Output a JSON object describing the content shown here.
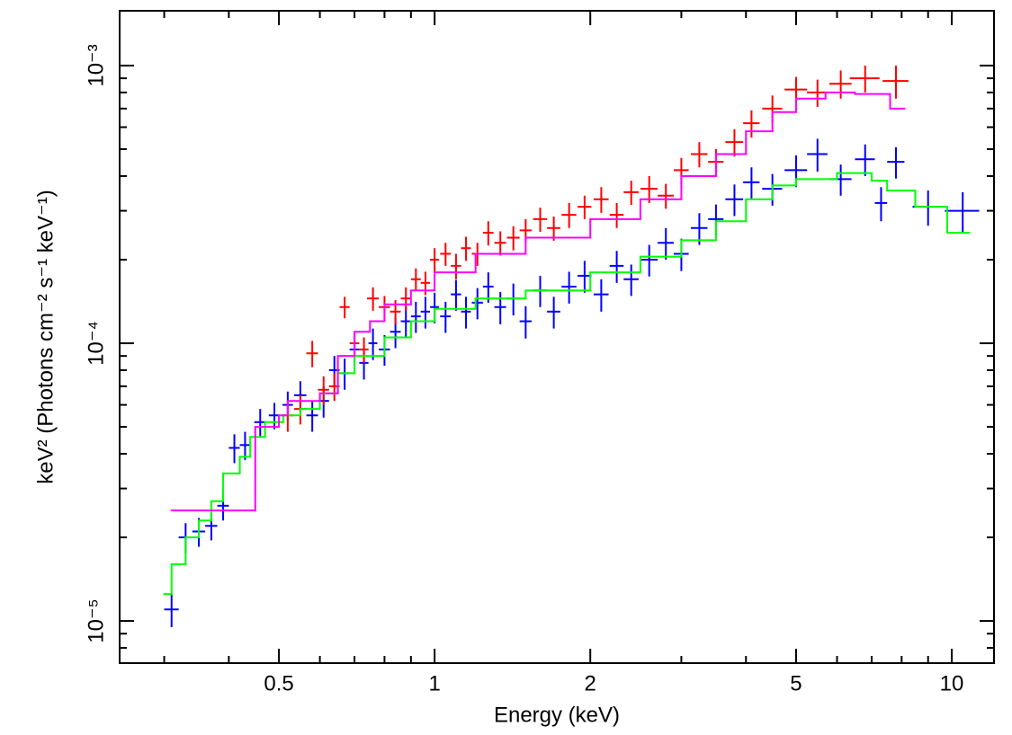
{
  "chart_data": {
    "type": "scatter",
    "xlabel": "Energy (keV)",
    "ylabel": "keV² (Photons cm⁻² s⁻¹ keV⁻¹)",
    "xscale": "log",
    "yscale": "log",
    "xlim": [
      0.246,
      12.07
    ],
    "ylim": [
      7.05e-06,
      0.001575
    ],
    "xticks": [
      0.5,
      1,
      2,
      5,
      10
    ],
    "xminorticks": [
      0.3,
      0.4,
      0.6,
      0.7,
      0.8,
      0.9,
      3,
      4,
      6,
      7,
      8,
      9
    ],
    "yticks": [
      {
        "value": 1e-05,
        "label": "10⁻⁵"
      },
      {
        "value": 0.0001,
        "label": "10⁻⁴"
      },
      {
        "value": 0.001,
        "label": "10⁻³"
      }
    ],
    "yminorticks": [
      8e-06,
      9e-06,
      2e-05,
      3e-05,
      4e-05,
      5e-05,
      6e-05,
      7e-05,
      8e-05,
      9e-05,
      0.0002,
      0.0003,
      0.0004,
      0.0005,
      0.0006,
      0.0007,
      0.0008,
      0.0009
    ],
    "series": [
      {
        "kind": "errorbar",
        "color": "#0000ff",
        "x": [
          0.31,
          0.33,
          0.35,
          0.37,
          0.39,
          0.41,
          0.43,
          0.46,
          0.49,
          0.52,
          0.55,
          0.58,
          0.61,
          0.64,
          0.67,
          0.7,
          0.73,
          0.76,
          0.8,
          0.84,
          0.88,
          0.92,
          0.96,
          1.0,
          1.05,
          1.1,
          1.15,
          1.21,
          1.27,
          1.34,
          1.42,
          1.5,
          1.6,
          1.7,
          1.82,
          1.95,
          2.1,
          2.25,
          2.4,
          2.6,
          2.8,
          3.0,
          3.25,
          3.5,
          3.8,
          4.1,
          4.5,
          5.0,
          5.5,
          6.1,
          6.8,
          7.3,
          7.8,
          9.0,
          10.5
        ],
        "xerr": [
          0.01,
          0.01,
          0.01,
          0.01,
          0.01,
          0.01,
          0.01,
          0.012,
          0.012,
          0.012,
          0.015,
          0.015,
          0.015,
          0.015,
          0.015,
          0.015,
          0.015,
          0.015,
          0.02,
          0.02,
          0.02,
          0.02,
          0.02,
          0.02,
          0.025,
          0.025,
          0.025,
          0.03,
          0.03,
          0.035,
          0.04,
          0.04,
          0.05,
          0.05,
          0.06,
          0.06,
          0.07,
          0.07,
          0.08,
          0.1,
          0.1,
          0.1,
          0.12,
          0.12,
          0.15,
          0.15,
          0.2,
          0.25,
          0.25,
          0.3,
          0.3,
          0.2,
          0.3,
          0.6,
          0.8
        ],
        "values": [
          1.1e-05,
          2e-05,
          2.1e-05,
          2.2e-05,
          2.6e-05,
          4.2e-05,
          4.3e-05,
          5.2e-05,
          5.5e-05,
          6e-05,
          6.5e-05,
          5.5e-05,
          6.2e-05,
          8e-05,
          7.8e-05,
          9.5e-05,
          8.5e-05,
          0.0001,
          9.5e-05,
          0.00011,
          0.00012,
          0.000125,
          0.00013,
          0.000135,
          0.000125,
          0.00015,
          0.00013,
          0.00014,
          0.00016,
          0.000135,
          0.000145,
          0.00012,
          0.000155,
          0.00013,
          0.00016,
          0.000175,
          0.00015,
          0.00019,
          0.00017,
          0.0002,
          0.00023,
          0.00021,
          0.00026,
          0.00028,
          0.00033,
          0.00038,
          0.00036,
          0.00042,
          0.00048,
          0.00039,
          0.00046,
          0.00032,
          0.00045,
          0.00031,
          0.0003
        ],
        "yerr": [
          1.5e-06,
          2.5e-06,
          2.5e-06,
          2.5e-06,
          3e-06,
          5e-06,
          5e-06,
          6e-06,
          6e-06,
          7e-06,
          8e-06,
          7e-06,
          8e-06,
          1e-05,
          1e-05,
          1.2e-05,
          1.1e-05,
          1.3e-05,
          1.2e-05,
          1.4e-05,
          1.5e-05,
          1.6e-05,
          1.7e-05,
          1.7e-05,
          1.6e-05,
          1.9e-05,
          1.7e-05,
          1.8e-05,
          2e-05,
          1.8e-05,
          1.9e-05,
          1.6e-05,
          2e-05,
          1.7e-05,
          2.1e-05,
          2.3e-05,
          2e-05,
          2.5e-05,
          2.2e-05,
          2.6e-05,
          3e-05,
          2.8e-05,
          3.4e-05,
          3.6e-05,
          4.3e-05,
          5e-05,
          4.7e-05,
          5.5e-05,
          6.5e-05,
          5e-05,
          6e-05,
          4.5e-05,
          5.8e-05,
          4.5e-05,
          5e-05
        ]
      },
      {
        "kind": "errorbar",
        "color": "#ff0000",
        "x": [
          0.52,
          0.55,
          0.58,
          0.61,
          0.64,
          0.67,
          0.7,
          0.73,
          0.76,
          0.8,
          0.84,
          0.88,
          0.92,
          0.96,
          1.0,
          1.05,
          1.1,
          1.15,
          1.21,
          1.27,
          1.34,
          1.42,
          1.5,
          1.6,
          1.7,
          1.82,
          1.95,
          2.1,
          2.25,
          2.4,
          2.6,
          2.8,
          3.0,
          3.25,
          3.5,
          3.8,
          4.1,
          4.5,
          5.0,
          5.5,
          6.1,
          6.8,
          7.8
        ],
        "xerr": [
          0.015,
          0.015,
          0.015,
          0.015,
          0.015,
          0.015,
          0.015,
          0.015,
          0.02,
          0.02,
          0.02,
          0.02,
          0.02,
          0.02,
          0.02,
          0.025,
          0.025,
          0.025,
          0.03,
          0.03,
          0.035,
          0.04,
          0.04,
          0.05,
          0.05,
          0.06,
          0.06,
          0.07,
          0.07,
          0.08,
          0.1,
          0.1,
          0.1,
          0.12,
          0.12,
          0.15,
          0.15,
          0.2,
          0.25,
          0.25,
          0.3,
          0.45,
          0.45
        ],
        "values": [
          5.5e-05,
          5.8e-05,
          9.2e-05,
          6.8e-05,
          7e-05,
          0.000135,
          0.0001,
          9.5e-05,
          0.000145,
          0.000135,
          0.00013,
          0.000145,
          0.00017,
          0.000165,
          0.0002,
          0.00021,
          0.00019,
          0.00022,
          0.00021,
          0.00025,
          0.00023,
          0.00024,
          0.000255,
          0.00028,
          0.00026,
          0.00029,
          0.00031,
          0.00033,
          0.00029,
          0.00035,
          0.00036,
          0.00034,
          0.00042,
          0.00048,
          0.00045,
          0.00053,
          0.00062,
          0.0007,
          0.00082,
          0.0008,
          0.00086,
          0.0009,
          0.00088
        ],
        "yerr": [
          7e-06,
          7e-06,
          1e-05,
          8e-06,
          8e-06,
          1.2e-05,
          1e-05,
          1e-05,
          1.4e-05,
          1.3e-05,
          1.3e-05,
          1.4e-05,
          1.6e-05,
          1.6e-05,
          2e-05,
          2e-05,
          2e-05,
          2.2e-05,
          2e-05,
          2.5e-05,
          2.3e-05,
          2.4e-05,
          2.5e-05,
          2.8e-05,
          2.6e-05,
          3e-05,
          3e-05,
          3.5e-05,
          3e-05,
          3.5e-05,
          4e-05,
          3.5e-05,
          4.5e-05,
          5e-05,
          5e-05,
          6e-05,
          7e-05,
          8e-05,
          9e-05,
          9e-05,
          0.0001,
          0.0001,
          0.00012
        ]
      },
      {
        "kind": "step",
        "color": "#00ff00",
        "bins": [
          0.3,
          0.31,
          0.33,
          0.35,
          0.37,
          0.39,
          0.42,
          0.44,
          0.47,
          0.51,
          0.55,
          0.6,
          0.65,
          0.7,
          0.8,
          0.9,
          1.0,
          1.2,
          1.5,
          2.0,
          2.5,
          3.0,
          3.5,
          4.0,
          4.5,
          5.0,
          6.0,
          7.0,
          7.5,
          8.5,
          9.8,
          10.8
        ],
        "values": [
          1.25e-05,
          1.6e-05,
          2e-05,
          2.3e-05,
          2.7e-05,
          3.4e-05,
          3.9e-05,
          4.6e-05,
          5.2e-05,
          5.5e-05,
          5.8e-05,
          6.6e-05,
          7.8e-05,
          9e-05,
          0.000105,
          0.00012,
          0.000133,
          0.000145,
          0.000155,
          0.00018,
          0.000205,
          0.000235,
          0.000275,
          0.00033,
          0.00037,
          0.00039,
          0.00041,
          0.000385,
          0.000355,
          0.00031,
          0.00025
        ]
      },
      {
        "kind": "step",
        "color": "#ff00ff",
        "bins": [
          0.31,
          0.45,
          0.5,
          0.52,
          0.6,
          0.65,
          0.7,
          0.75,
          0.8,
          0.9,
          1.0,
          1.2,
          1.5,
          2.0,
          2.5,
          3.0,
          3.5,
          4.0,
          4.5,
          5.0,
          5.7,
          6.5,
          7.6,
          8.1
        ],
        "values": [
          2.5e-05,
          5e-05,
          5.5e-05,
          6.2e-05,
          6.6e-05,
          9e-05,
          0.00011,
          0.00012,
          0.000138,
          0.000155,
          0.00018,
          0.00021,
          0.00024,
          0.00028,
          0.00033,
          0.0004,
          0.00048,
          0.00058,
          0.00068,
          0.00076,
          0.0008,
          0.00079,
          0.0007
        ]
      }
    ]
  }
}
